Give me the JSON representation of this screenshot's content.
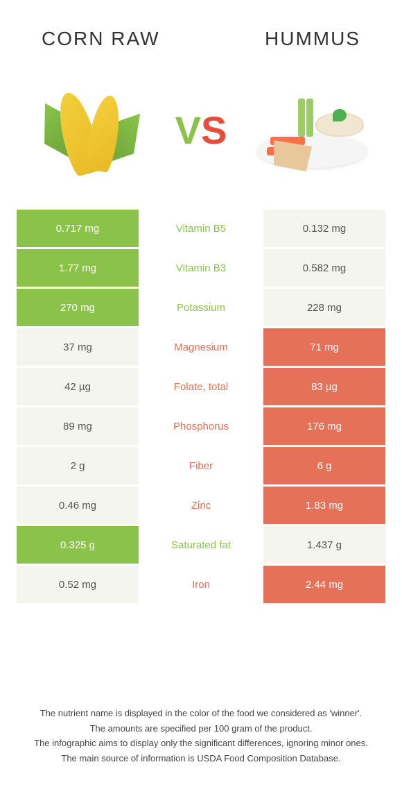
{
  "header": {
    "left_title": "CORN RAW",
    "right_title": "HUMMUS",
    "vs_v": "V",
    "vs_s": "S"
  },
  "colors": {
    "corn_color": "#8bc34a",
    "hummus_color": "#e57258",
    "light_bg": "#f5f5f0",
    "text_dark": "#555"
  },
  "rows": [
    {
      "nutrient": "Vitamin B5",
      "left": "0.717 mg",
      "right": "0.132 mg",
      "winner": "corn"
    },
    {
      "nutrient": "Vitamin B3",
      "left": "1.77 mg",
      "right": "0.582 mg",
      "winner": "corn"
    },
    {
      "nutrient": "Potassium",
      "left": "270 mg",
      "right": "228 mg",
      "winner": "corn"
    },
    {
      "nutrient": "Magnesium",
      "left": "37 mg",
      "right": "71 mg",
      "winner": "hummus"
    },
    {
      "nutrient": "Folate, total",
      "left": "42 µg",
      "right": "83 µg",
      "winner": "hummus"
    },
    {
      "nutrient": "Phosphorus",
      "left": "89 mg",
      "right": "176 mg",
      "winner": "hummus"
    },
    {
      "nutrient": "Fiber",
      "left": "2 g",
      "right": "6 g",
      "winner": "hummus"
    },
    {
      "nutrient": "Zinc",
      "left": "0.46 mg",
      "right": "1.83 mg",
      "winner": "hummus"
    },
    {
      "nutrient": "Saturated fat",
      "left": "0.325 g",
      "right": "1.437 g",
      "winner": "corn"
    },
    {
      "nutrient": "Iron",
      "left": "0.52 mg",
      "right": "2.44 mg",
      "winner": "hummus"
    }
  ],
  "footer": {
    "line1": "The nutrient name is displayed in the color of the food we considered as 'winner'.",
    "line2": "The amounts are specified per 100 gram of the product.",
    "line3": "The infographic aims to display only the significant differences, ignoring minor ones.",
    "line4": "The main source of information is USDA Food Composition Database."
  }
}
